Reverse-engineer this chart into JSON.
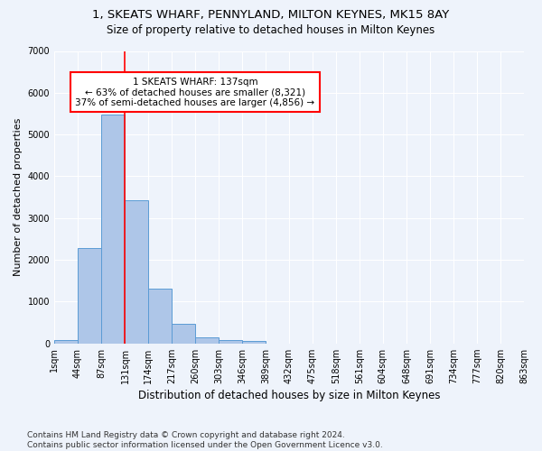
{
  "title": "1, SKEATS WHARF, PENNYLAND, MILTON KEYNES, MK15 8AY",
  "subtitle": "Size of property relative to detached houses in Milton Keynes",
  "xlabel": "Distribution of detached houses by size in Milton Keynes",
  "ylabel": "Number of detached properties",
  "bar_values": [
    80,
    2280,
    5480,
    3430,
    1310,
    460,
    155,
    90,
    55,
    0,
    0,
    0,
    0,
    0,
    0,
    0,
    0,
    0,
    0,
    0
  ],
  "bin_edges": [
    1,
    44,
    87,
    131,
    174,
    217,
    260,
    303,
    346,
    389,
    432,
    475,
    518,
    561,
    604,
    648,
    691,
    734,
    777,
    820,
    863
  ],
  "bin_labels": [
    "1sqm",
    "44sqm",
    "87sqm",
    "131sqm",
    "174sqm",
    "217sqm",
    "260sqm",
    "303sqm",
    "346sqm",
    "389sqm",
    "432sqm",
    "475sqm",
    "518sqm",
    "561sqm",
    "604sqm",
    "648sqm",
    "691sqm",
    "734sqm",
    "777sqm",
    "820sqm",
    "863sqm"
  ],
  "bar_color": "#aec6e8",
  "bar_edge_color": "#5b9bd5",
  "vline_x": 131,
  "vline_color": "red",
  "annotation_text": "1 SKEATS WHARF: 137sqm\n← 63% of detached houses are smaller (8,321)\n37% of semi-detached houses are larger (4,856) →",
  "annotation_box_color": "white",
  "annotation_box_edge": "red",
  "ylim": [
    0,
    7000
  ],
  "yticks": [
    0,
    1000,
    2000,
    3000,
    4000,
    5000,
    6000,
    7000
  ],
  "background_color": "#eef3fb",
  "grid_color": "white",
  "footnote": "Contains HM Land Registry data © Crown copyright and database right 2024.\nContains public sector information licensed under the Open Government Licence v3.0.",
  "title_fontsize": 9.5,
  "subtitle_fontsize": 8.5,
  "xlabel_fontsize": 8.5,
  "ylabel_fontsize": 8,
  "tick_fontsize": 7,
  "annotation_fontsize": 7.5,
  "footnote_fontsize": 6.5
}
